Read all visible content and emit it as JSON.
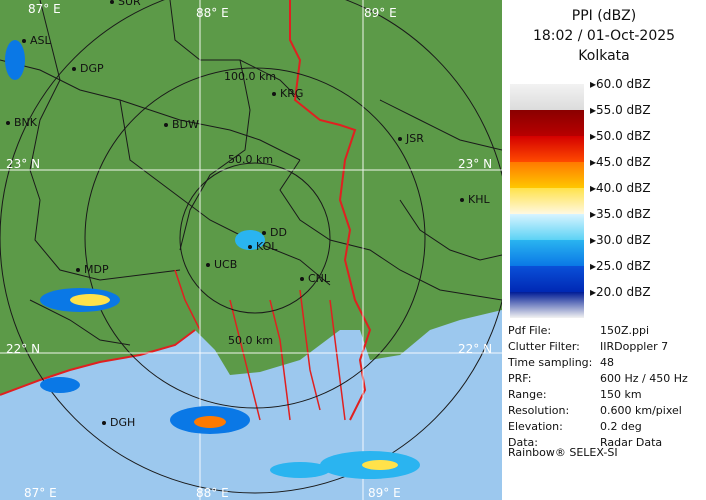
{
  "panel": {
    "title_line1": "PPI (dBZ)",
    "title_line2": "18:02 / 01-Oct-2025",
    "title_line3": "Kolkata",
    "legend": [
      {
        "label": "60.0 dBZ",
        "color_top": "#f2f2f2",
        "color_bottom": "#dcdcdc"
      },
      {
        "label": "55.0 dBZ",
        "color_top": "#8a0000",
        "color_bottom": "#b80000"
      },
      {
        "label": "50.0 dBZ",
        "color_top": "#d40000",
        "color_bottom": "#ff4a00"
      },
      {
        "label": "45.0 dBZ",
        "color_top": "#ff7a00",
        "color_bottom": "#ffc800"
      },
      {
        "label": "40.0 dBZ",
        "color_top": "#ffe24a",
        "color_bottom": "#fff8e0"
      },
      {
        "label": "35.0 dBZ",
        "color_top": "#d8f4ff",
        "color_bottom": "#5cd2f5"
      },
      {
        "label": "30.0 dBZ",
        "color_top": "#2ab4f0",
        "color_bottom": "#0a78e6"
      },
      {
        "label": "25.0 dBZ",
        "color_top": "#0a50d8",
        "color_bottom": "#0028b4"
      },
      {
        "label": "20.0 dBZ",
        "color_top": "#001c96",
        "color_bottom": "#f2f2f2"
      }
    ],
    "info": [
      {
        "key": "Pdf File:",
        "value": "150Z.ppi"
      },
      {
        "key": "Clutter Filter:",
        "value": "IIRDoppler 7"
      },
      {
        "key": "Time sampling:",
        "value": "48"
      },
      {
        "key": "PRF:",
        "value": "600 Hz / 450 Hz"
      },
      {
        "key": "Range:",
        "value": "150 km"
      },
      {
        "key": "Resolution:",
        "value": "0.600 km/pixel"
      },
      {
        "key": "Elevation:",
        "value": "0.2 deg"
      },
      {
        "key": "Data:",
        "value": "Radar Data"
      }
    ],
    "footer": "Rainbow® SELEX-SI"
  },
  "map": {
    "ring_labels": [
      "100.0 km",
      "50.0 km",
      "50.0 km"
    ],
    "lon_labels": [
      "87° E",
      "88° E",
      "89° E"
    ],
    "lat_labels": [
      "23° N",
      "23° N",
      "22° N",
      "22° N"
    ],
    "bottom_labels": [
      "87° E",
      "88° E",
      "89° E"
    ],
    "cities": [
      "SUR",
      "ASL",
      "DGP",
      "BNK",
      "BDW",
      "KRG",
      "JSR",
      "KHL",
      "DD",
      "KOL",
      "UCB",
      "CNL",
      "MDP",
      "DGH"
    ],
    "colors": {
      "land": "#5c9a48",
      "sea": "#9cc8ee",
      "border": "#e02020",
      "district": "#1a1a1a"
    }
  }
}
